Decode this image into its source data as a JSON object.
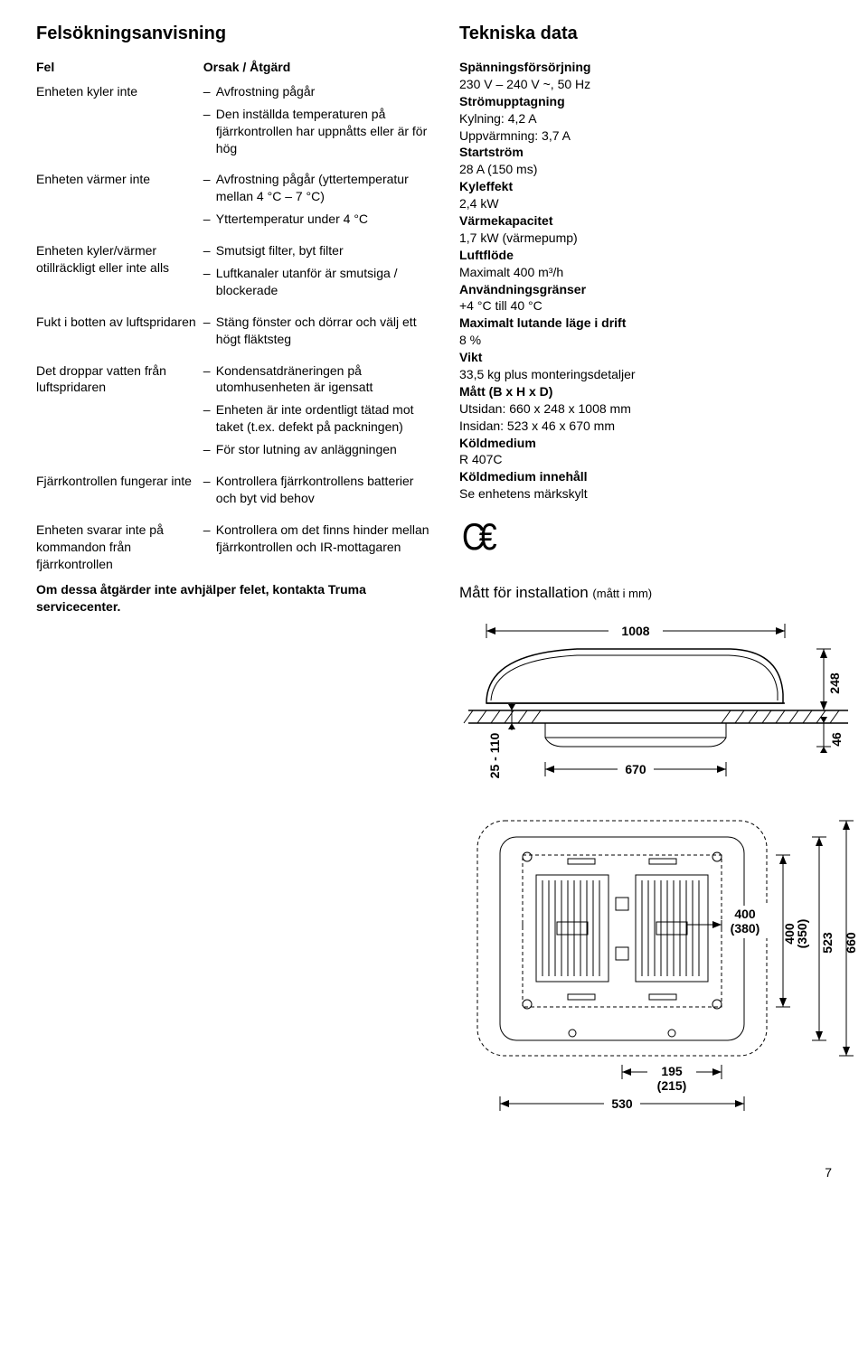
{
  "left": {
    "title": "Felsökningsanvisning",
    "col1_header": "Fel",
    "col2_header": "Orsak / Åtgärd",
    "rows": [
      {
        "fault": "Enheten kyler inte",
        "actions": [
          "Avfrostning pågår",
          "Den inställda temperaturen på fjärrkontrollen har uppnåtts eller är för hög"
        ]
      },
      {
        "fault": "Enheten värmer inte",
        "actions": [
          "Avfrostning pågår (yttertemperatur mellan 4 °C – 7 °C)",
          "Yttertemperatur under 4 °C"
        ]
      },
      {
        "fault": "Enheten kyler/värmer otillräckligt eller inte alls",
        "actions": [
          "Smutsigt filter, byt filter",
          "Luftkanaler utanför är smutsiga / blockerade"
        ]
      },
      {
        "fault": "Fukt i botten av luftspridaren",
        "actions": [
          "Stäng fönster och dörrar och välj ett högt fläktsteg"
        ]
      },
      {
        "fault": "Det droppar vatten från luftspridaren",
        "actions": [
          "Kondensatdräneringen på utomhusenheten är igensatt",
          "Enheten är inte ordentligt tätad mot taket (t.ex. defekt på packningen)",
          "För stor lutning av anläggningen"
        ]
      },
      {
        "fault": "Fjärrkontrollen fungerar inte",
        "actions": [
          "Kontrollera fjärrkontrollens batterier och byt vid behov"
        ]
      },
      {
        "fault": "Enheten svarar inte på kommandon från fjärrkontrollen",
        "actions": [
          "Kontrollera om det finns hinder mellan fjärrkontrollen och IR-mottagaren"
        ]
      }
    ],
    "footer": "Om dessa åtgärder inte avhjälper felet, kontakta Truma servicecenter."
  },
  "right": {
    "title": "Tekniska data",
    "specs": [
      {
        "k": "Spänningsförsörjning",
        "v": "230 V – 240 V ~, 50 Hz"
      },
      {
        "k": "Strömupptagning",
        "v": "Kylning: 4,2 A"
      },
      {
        "k": "",
        "v_html": "Uppvärmning: 3,7 A"
      },
      {
        "k": "Startström",
        "v": "28 A (150 ms)"
      },
      {
        "k": "Kyleffekt",
        "v": "2,4 kW"
      },
      {
        "k": "Värmekapacitet",
        "v": "1,7 kW (värmepump)"
      },
      {
        "k": "Luftflöde",
        "v": "Maximalt 400 m³/h"
      },
      {
        "k": "Användningsgränser",
        "v": "+4 °C till 40 °C"
      },
      {
        "k": "Maximalt lutande läge i drift",
        "v": "8 %"
      },
      {
        "k": "Vikt",
        "v": "33,5 kg plus monteringsdetaljer"
      },
      {
        "k": "Mått (B x H x D)",
        "v": "Utsidan: 660 x 248 x 1008 mm"
      },
      {
        "k": "",
        "v_html": "Insidan:  523 x 46 x 670 mm"
      },
      {
        "k": "Köldmedium",
        "v": "R 407C"
      },
      {
        "k": "Köldmedium innehåll",
        "v": "Se enhetens märkskylt"
      }
    ],
    "install_title": "Mått för installation",
    "install_unit": "(mått i mm)",
    "dims": {
      "top_width": "1008",
      "top_height": "248",
      "inner_width": "670",
      "inner_height": "46",
      "gap": "25 - 110",
      "plan_w1": "400",
      "plan_w1b": "(380)",
      "plan_h1": "400",
      "plan_h1b": "(350)",
      "plan_outer_h": "660",
      "plan_inner_h": "523",
      "plan_bottom1": "195",
      "plan_bottom1b": "(215)",
      "plan_bottom2": "530"
    }
  },
  "pagenum": "7"
}
